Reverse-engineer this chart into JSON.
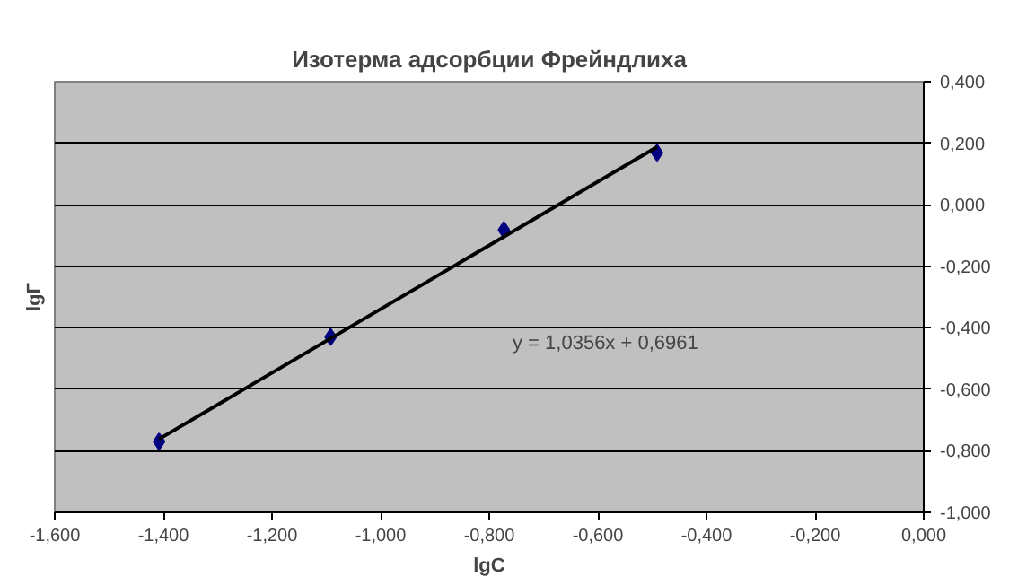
{
  "chart_data": {
    "type": "scatter",
    "title": "Изотерма адсорбции Фрейндлиха",
    "xlabel": "lgC",
    "ylabel": "lgГ",
    "x": [
      -1.408,
      -1.092,
      -0.773,
      -0.491
    ],
    "series": [
      {
        "color": "#000080",
        "values": [
          -0.77,
          -0.43,
          -0.082,
          0.169
        ],
        "marker": "diamond"
      },
      {
        "type": "line",
        "color": "#000000",
        "x": [
          -1.408,
          -0.491
        ],
        "values": [
          -0.762,
          0.188
        ],
        "marker": "none"
      }
    ],
    "annotations": [
      "y = 1,0356x + 0,6961"
    ],
    "xlim": [
      -1.6,
      0
    ],
    "xticks": [
      {
        "value": -1.6,
        "label": "-1,600"
      },
      {
        "value": -1.4,
        "label": "-1,400"
      },
      {
        "value": -1.2,
        "label": "-1,200"
      },
      {
        "value": -1.0,
        "label": "-1,000"
      },
      {
        "value": -0.8,
        "label": "-0,800"
      },
      {
        "value": -0.6,
        "label": "-0,600"
      },
      {
        "value": -0.4,
        "label": "-0,400"
      },
      {
        "value": -0.2,
        "label": "-0,200"
      },
      {
        "value": 0,
        "label": "0,000"
      }
    ],
    "ylim": [
      -1.0,
      0.4
    ],
    "yticks": [
      {
        "value": -1.0,
        "label": "-1,000"
      },
      {
        "value": -0.8,
        "label": "-0,800"
      },
      {
        "value": -0.6,
        "label": "-0,600"
      },
      {
        "value": -0.4,
        "label": "-0,400"
      },
      {
        "value": -0.2,
        "label": "-0,200"
      },
      {
        "value": 0,
        "label": "0,000"
      },
      {
        "value": 0.2,
        "label": "0,200"
      },
      {
        "value": 0.4,
        "label": "0,400"
      }
    ],
    "grid": "y"
  }
}
